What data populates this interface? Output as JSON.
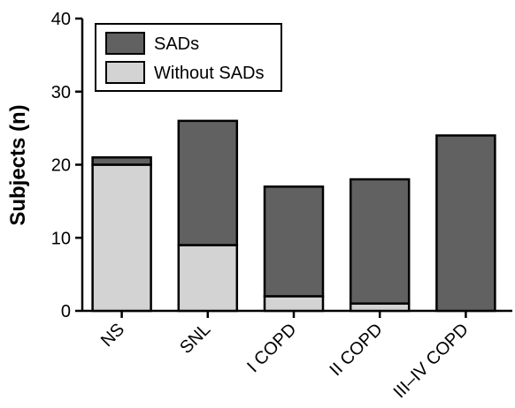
{
  "chart_data": {
    "type": "bar",
    "stacked": true,
    "title": "",
    "xlabel": "",
    "ylabel": "Subjects (n)",
    "ylim": [
      0,
      40
    ],
    "yticks": [
      0,
      10,
      20,
      30,
      40
    ],
    "grid": false,
    "legend_position": "top-left",
    "categories": [
      "NS",
      "SNL",
      "I COPD",
      "II COPD",
      "III–IV COPD"
    ],
    "series": [
      {
        "name": "Without SADs",
        "values": [
          20,
          9,
          2,
          1,
          0
        ],
        "color": "#d3d3d3"
      },
      {
        "name": "SADs",
        "values": [
          1,
          17,
          15,
          17,
          24
        ],
        "color": "#616161"
      }
    ]
  }
}
